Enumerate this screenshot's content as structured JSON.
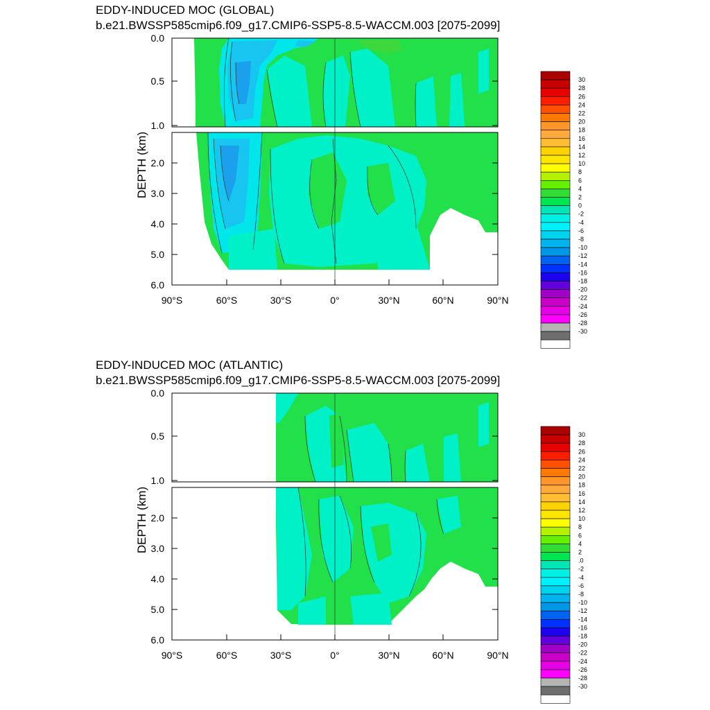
{
  "colors": {
    "palette": [
      "#ffffff",
      "#6e6e6e",
      "#b4b4b4",
      "#ff00ff",
      "#e600e6",
      "#c800c8",
      "#a000c8",
      "#6400dc",
      "#1e00f0",
      "#0032ff",
      "#0064f0",
      "#0096e6",
      "#00b4f0",
      "#00d2f0",
      "#00f0ff",
      "#00f0e6",
      "#00e6b4",
      "#00e650",
      "#32dc32",
      "#64f000",
      "#b4f000",
      "#ffff00",
      "#ffe600",
      "#ffd200",
      "#ffbe32",
      "#ffaa3c",
      "#ff9628",
      "#ff7800",
      "#ff5000",
      "#ff1e00",
      "#e60000",
      "#c80000",
      "#aa0000"
    ],
    "green": "#22e04a",
    "aqua": "#00f0c8",
    "cyan": "#00e6ea",
    "lightblue": "#18c4f0",
    "blue": "#1aa0ec",
    "line": "#1a3a2a"
  },
  "chart_data": [
    {
      "type": "contour",
      "title": "EDDY-INDUCED MOC (GLOBAL)",
      "subtitle": "b.e21.BWSSP585cmip6.f09_g17.CMIP6-SSP5-8.5-WACCM.003 [2075-2099]",
      "ylabel": "DEPTH (km)",
      "xticks": [
        "90°S",
        "60°S",
        "30°S",
        "0°",
        "30°N",
        "60°N",
        "90°N"
      ],
      "yticks_upper": [
        "0.0",
        "0.5",
        "1.0"
      ],
      "yticks_lower": [
        "2.0",
        "3.0",
        "4.0",
        "5.0",
        "6.0"
      ],
      "xlim": [
        -90,
        90
      ],
      "ylim": [
        6.0,
        0.0
      ],
      "colorbar": [
        "30",
        "28",
        "26",
        "24",
        "22",
        "20",
        "18",
        "16",
        "14",
        "12",
        "10",
        "8",
        "6",
        "4",
        "2",
        "0",
        "-2",
        "-4",
        "-6",
        "-8",
        "-10",
        "-12",
        "-14",
        "-16",
        "-18",
        "-20",
        "-22",
        "-24",
        "-26",
        "-28",
        "-30"
      ],
      "minimum_approx": -14,
      "minimum_location": {
        "lat": -50,
        "depth_km": 0.6
      }
    },
    {
      "type": "contour",
      "title": "EDDY-INDUCED MOC (ATLANTIC)",
      "subtitle": "b.e21.BWSSP585cmip6.f09_g17.CMIP6-SSP5-8.5-WACCM.003 [2075-2099]",
      "ylabel": "DEPTH (km)",
      "xticks": [
        "90°S",
        "60°S",
        "30°S",
        "0°",
        "30°N",
        "60°N",
        "90°N"
      ],
      "yticks_upper": [
        "0.0",
        "0.5",
        "1.0"
      ],
      "yticks_lower": [
        "2.0",
        "3.0",
        "4.0",
        "5.0",
        "6.0"
      ],
      "xlim": [
        -90,
        90
      ],
      "ylim": [
        6.0,
        0.0
      ],
      "colorbar": [
        "30",
        "28",
        "26",
        "24",
        "22",
        "20",
        "18",
        "16",
        "14",
        "12",
        "10",
        "8",
        "6",
        "4",
        "2",
        ".0",
        "-2",
        "-4",
        "-6",
        "-8",
        "-10",
        "-12",
        "-14",
        "-16",
        "-18",
        "-20",
        "-22",
        "-24",
        "-26",
        "-28",
        "-30"
      ],
      "value_range_approx": [
        -4,
        4
      ]
    }
  ]
}
